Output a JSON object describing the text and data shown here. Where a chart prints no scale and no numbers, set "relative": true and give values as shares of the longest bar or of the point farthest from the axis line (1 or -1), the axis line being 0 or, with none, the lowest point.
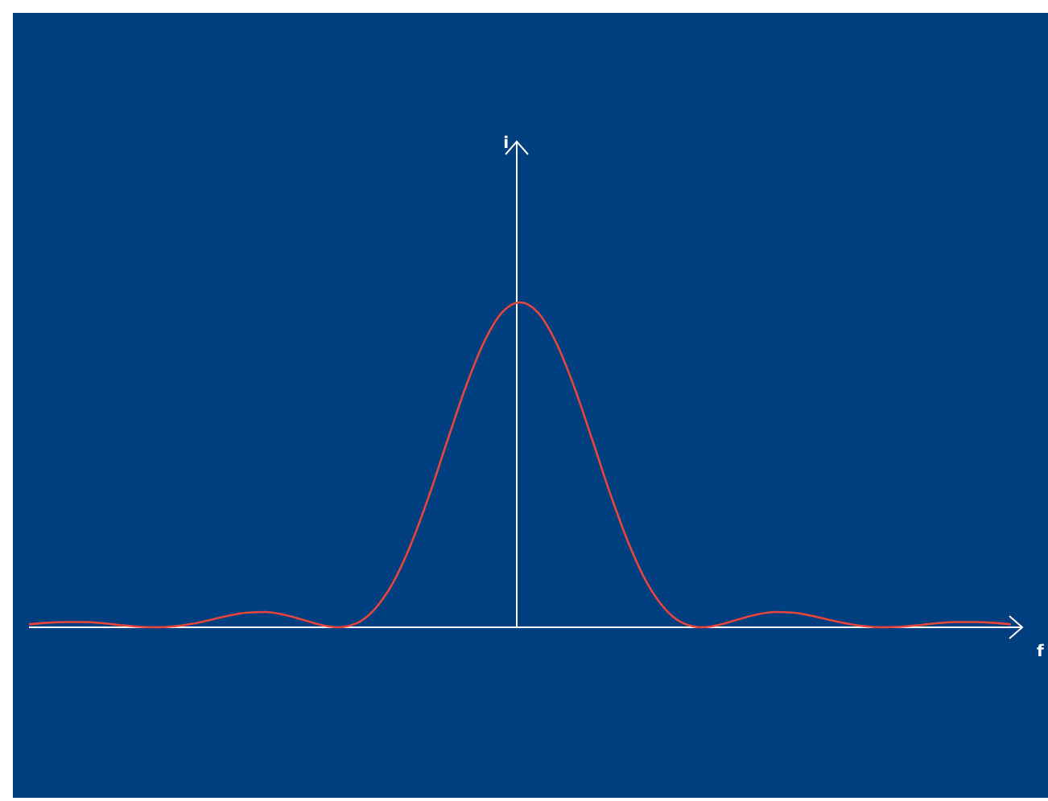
{
  "chart_data": {
    "type": "line",
    "relative": true,
    "xlabel": "f",
    "categories": [
      null,
      null,
      null,
      null,
      null,
      null,
      null,
      null,
      null,
      null,
      null,
      null,
      null,
      null,
      null,
      null,
      null,
      null,
      null,
      null,
      null,
      null,
      null,
      null,
      null,
      null,
      null,
      null,
      null,
      null,
      null,
      null,
      null,
      null,
      null,
      null,
      null,
      null,
      null,
      null,
      null,
      null,
      null,
      null,
      null,
      null,
      null,
      null,
      null,
      null,
      null,
      null,
      null,
      null,
      null
    ],
    "series": [
      {
        "color": "#e8463c",
        "values": [
          0.009,
          0.014,
          0.016,
          0.016,
          0.013,
          0.007,
          0.002,
          0,
          0.003,
          0.011,
          0.023,
          0.036,
          0.045,
          0.047,
          0.039,
          0.024,
          0.008,
          0,
          0.012,
          0.055,
          0.135,
          0.255,
          0.405,
          0.573,
          0.737,
          0.875,
          0.968,
          1,
          0.968,
          0.875,
          0.737,
          0.573,
          0.405,
          0.255,
          0.135,
          0.055,
          0.012,
          0,
          0.008,
          0.024,
          0.039,
          0.047,
          0.045,
          0.036,
          0.023,
          0.011,
          0.003,
          0,
          0.002,
          0.007,
          0.013,
          0.016,
          0.016,
          0.014,
          0.009
        ]
      }
    ],
    "marker": "none",
    "line_style": "solid",
    "annotations": [
      "i"
    ]
  }
}
